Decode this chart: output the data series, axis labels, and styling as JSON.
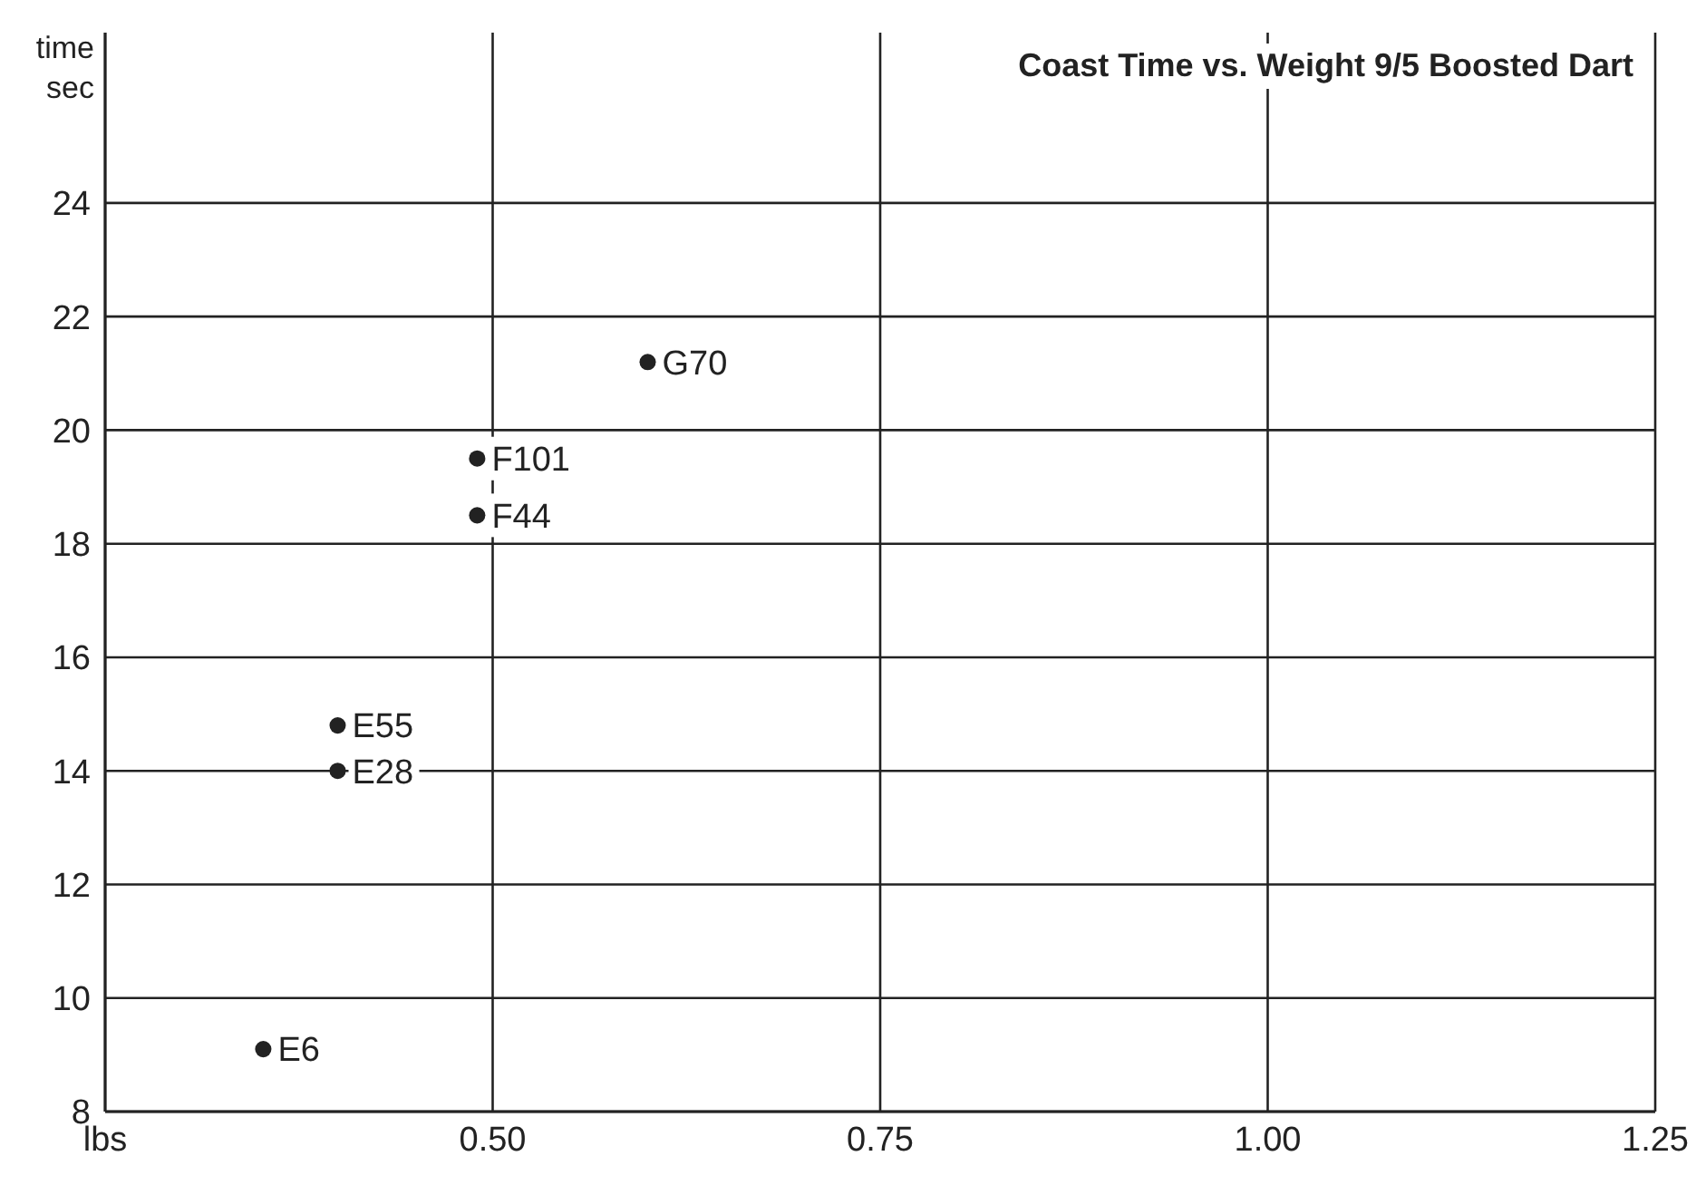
{
  "chart_data": {
    "type": "scatter",
    "title": "Coast Time vs. Weight 9/5 Boosted Dart",
    "ylabel": "time sec",
    "x": [
      0.352,
      0.4,
      0.4,
      0.49,
      0.49,
      0.6
    ],
    "values": [
      9.1,
      14.0,
      14.8,
      18.5,
      19.5,
      21.2
    ],
    "color": "#222222",
    "marker": "circle",
    "xlim": [
      0.25,
      1.25
    ],
    "xticks": [
      {
        "value": 0.25,
        "label": "lbs"
      },
      {
        "value": 0.5,
        "label": "0.50"
      },
      {
        "value": 0.75,
        "label": "0.75"
      },
      {
        "value": 1.0,
        "label": "1.00"
      },
      {
        "value": 1.25,
        "label": "1.25"
      }
    ],
    "ylim": [
      8,
      27
    ],
    "yticks": [
      8,
      10,
      12,
      14,
      16,
      18,
      20,
      22,
      24
    ],
    "grid": true,
    "annotations": [
      {
        "text": "E6",
        "x": 0.352,
        "y": 9.1
      },
      {
        "text": "E28",
        "x": 0.4,
        "y": 14.0
      },
      {
        "text": "E55",
        "x": 0.4,
        "y": 14.8
      },
      {
        "text": "F44",
        "x": 0.49,
        "y": 18.5
      },
      {
        "text": "F101",
        "x": 0.49,
        "y": 19.5
      },
      {
        "text": "G70",
        "x": 0.6,
        "y": 21.2
      }
    ]
  }
}
